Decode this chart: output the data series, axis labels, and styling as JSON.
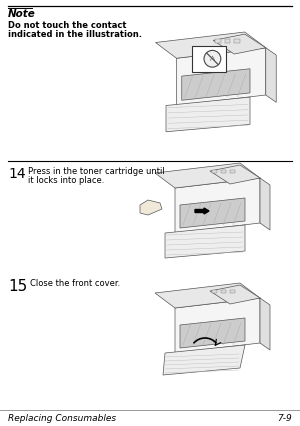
{
  "bg_color": "#ffffff",
  "note_title": "Note",
  "note_text_line1": "Do not touch the contact",
  "note_text_line2": "indicated in the illustration.",
  "step14_num": "14",
  "step14_text_line1": "Press in the toner cartridge until",
  "step14_text_line2": "it locks into place.",
  "step15_num": "15",
  "step15_text": "Close the front cover.",
  "footer_left": "Replacing Consumables",
  "footer_right": "7-9",
  "text_color": "#000000",
  "note_title_fontsize": 7.5,
  "note_text_fontsize": 6.0,
  "step_num_fontsize": 10,
  "step_text_fontsize": 6.0,
  "footer_fontsize": 6.5,
  "illus_line_color": "#555555",
  "illus_fill_color": "#f2f2f2",
  "illus_dark_color": "#888888"
}
